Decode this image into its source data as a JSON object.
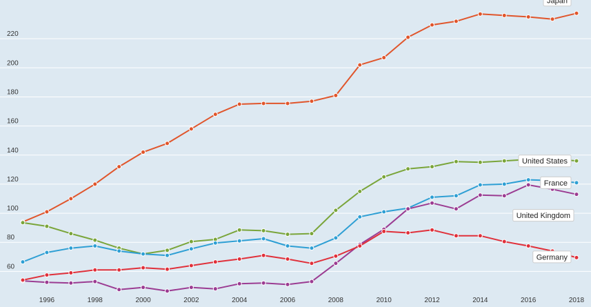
{
  "chart_data": {
    "type": "line",
    "title": "",
    "xlabel": "",
    "ylabel": "",
    "xlim": [
      1995,
      2018
    ],
    "ylim": [
      45,
      240
    ],
    "x_ticks": [
      "1996",
      "1998",
      "2000",
      "2002",
      "2004",
      "2006",
      "2008",
      "2010",
      "2012",
      "2014",
      "2016",
      "2018"
    ],
    "y_ticks": [
      "60",
      "80",
      "100",
      "120",
      "140",
      "160",
      "180",
      "200",
      "220"
    ],
    "grid": true,
    "x": [
      1995,
      1996,
      1997,
      1998,
      1999,
      2000,
      2001,
      2002,
      2003,
      2004,
      2005,
      2006,
      2007,
      2008,
      2009,
      2010,
      2011,
      2012,
      2013,
      2014,
      2015,
      2016,
      2017,
      2018
    ],
    "series": [
      {
        "name": "Japan",
        "color": "#e0552b",
        "values": [
          94,
          101,
          110,
          120,
          132,
          142,
          148,
          158,
          168,
          175,
          175.5,
          175.5,
          177,
          181,
          202,
          207,
          221,
          229.5,
          232,
          237,
          236,
          235,
          233.5,
          237.5
        ]
      },
      {
        "name": "United States",
        "color": "#7aa53a",
        "values": [
          93.5,
          91,
          86,
          81.5,
          76,
          72,
          74.5,
          80.5,
          82,
          88.5,
          88,
          85.5,
          86,
          102,
          115,
          125,
          130.5,
          132,
          135.5,
          135,
          136,
          137,
          137.5,
          136
        ]
      },
      {
        "name": "France",
        "color": "#2e9fd4",
        "values": [
          66.5,
          73,
          76,
          77.5,
          74,
          72,
          71,
          75.5,
          79.5,
          81,
          82.5,
          77.5,
          76,
          83,
          97.5,
          101,
          103.5,
          111,
          112,
          119.5,
          120,
          123,
          122.5,
          121
        ]
      },
      {
        "name": "United Kingdom",
        "color": "#9b3c92",
        "values": [
          53.5,
          52.5,
          52,
          53,
          47.5,
          49,
          46.5,
          49,
          48,
          51.5,
          52,
          51,
          53,
          65.5,
          78.5,
          89,
          103,
          107,
          103,
          112.5,
          112,
          119.5,
          116.5,
          113
        ]
      },
      {
        "name": "Germany",
        "color": "#e0303a",
        "values": [
          54,
          57.5,
          59,
          61,
          61,
          62.5,
          61.5,
          64,
          66.5,
          68.5,
          71,
          68.5,
          65.5,
          70.5,
          77.5,
          87.5,
          86.5,
          88.5,
          84.5,
          84.5,
          80.5,
          77.5,
          74,
          69.5
        ]
      }
    ]
  }
}
